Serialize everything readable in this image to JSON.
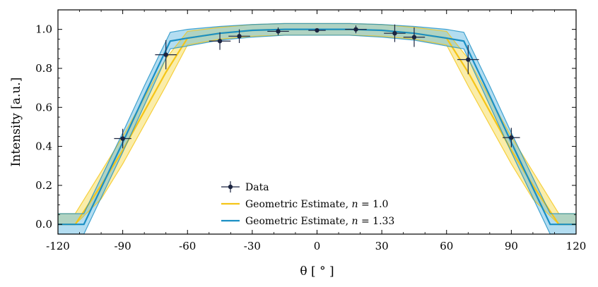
{
  "chart_data": {
    "type": "line",
    "title": "",
    "xlabel": "θ [ ° ]",
    "ylabel": "Intensity [a.u.]",
    "xlim": [
      -120,
      120
    ],
    "ylim": [
      -0.05,
      1.1
    ],
    "grid": false,
    "legend_position": "lower-center",
    "xticks": [
      -120,
      -90,
      -60,
      -30,
      0,
      30,
      60,
      90,
      120
    ],
    "xtick_labels": [
      "-120",
      "-90",
      "-60",
      "-30",
      "0",
      "30",
      "60",
      "90",
      "120"
    ],
    "yticks": [
      0.0,
      0.2,
      0.4,
      0.6,
      0.8,
      1.0
    ],
    "ytick_labels": [
      "0.0",
      "0.2",
      "0.4",
      "0.6",
      "0.8",
      "1.0"
    ],
    "series": [
      {
        "name": "Data",
        "kind": "errorbar",
        "color": "#1b2440",
        "points": [
          {
            "x": -90,
            "y": 0.44,
            "xerr": 4,
            "yerr": 0.05
          },
          {
            "x": -70,
            "y": 0.87,
            "xerr": 5,
            "yerr": 0.075
          },
          {
            "x": -45,
            "y": 0.94,
            "xerr": 5,
            "yerr": 0.045
          },
          {
            "x": -36,
            "y": 0.965,
            "xerr": 5,
            "yerr": 0.035
          },
          {
            "x": -18,
            "y": 0.99,
            "xerr": 5,
            "yerr": 0.02
          },
          {
            "x": 0,
            "y": 0.995,
            "xerr": 4,
            "yerr": 0.01
          },
          {
            "x": 18,
            "y": 1.0,
            "xerr": 5,
            "yerr": 0.02
          },
          {
            "x": 36,
            "y": 0.98,
            "xerr": 5,
            "yerr": 0.045
          },
          {
            "x": 45,
            "y": 0.96,
            "xerr": 5,
            "yerr": 0.05
          },
          {
            "x": 70,
            "y": 0.845,
            "xerr": 5,
            "yerr": 0.075
          },
          {
            "x": 90,
            "y": 0.445,
            "xerr": 4,
            "yerr": 0.05
          }
        ]
      },
      {
        "name": "Geometric Estimate, n = 1.0",
        "kind": "line_band",
        "color": "#f5c518",
        "fill": "#f5d742",
        "x": [
          -120,
          -112,
          -100,
          -90,
          -80,
          -70,
          -60,
          -45,
          -30,
          -15,
          0,
          15,
          30,
          45,
          60,
          70,
          80,
          90,
          100,
          112,
          120
        ],
        "y": [
          0.0,
          0.0,
          0.2,
          0.38,
          0.58,
          0.78,
          0.955,
          0.98,
          0.995,
          1.0,
          1.0,
          1.0,
          0.995,
          0.98,
          0.955,
          0.78,
          0.58,
          0.38,
          0.2,
          0.0,
          0.0
        ],
        "upper": [
          0.055,
          0.055,
          0.27,
          0.45,
          0.65,
          0.85,
          0.99,
          1.01,
          1.025,
          1.03,
          1.03,
          1.03,
          1.025,
          1.01,
          0.99,
          0.85,
          0.65,
          0.45,
          0.27,
          0.055,
          0.055
        ],
        "lower": [
          0.0,
          0.0,
          0.13,
          0.31,
          0.51,
          0.71,
          0.92,
          0.95,
          0.965,
          0.97,
          0.97,
          0.97,
          0.965,
          0.95,
          0.92,
          0.71,
          0.51,
          0.31,
          0.13,
          0.0,
          0.0
        ]
      },
      {
        "name": "Geometric Estimate, n = 1.33",
        "kind": "line_band",
        "color": "#1a8fc4",
        "fill": "#56b4e0",
        "x": [
          -120,
          -108,
          -90,
          -80,
          -68,
          -60,
          -45,
          -30,
          -15,
          0,
          15,
          30,
          45,
          60,
          68,
          80,
          90,
          108,
          120
        ],
        "y": [
          0.0,
          0.0,
          0.42,
          0.66,
          0.94,
          0.955,
          0.98,
          0.995,
          1.0,
          1.0,
          1.0,
          0.995,
          0.98,
          0.955,
          0.94,
          0.66,
          0.42,
          0.0,
          0.0
        ],
        "upper": [
          0.055,
          0.055,
          0.47,
          0.71,
          0.985,
          1.0,
          1.015,
          1.025,
          1.03,
          1.03,
          1.03,
          1.025,
          1.015,
          1.0,
          0.985,
          0.71,
          0.47,
          0.055,
          0.055
        ],
        "lower": [
          -0.05,
          -0.05,
          0.37,
          0.61,
          0.9,
          0.915,
          0.945,
          0.96,
          0.97,
          0.97,
          0.97,
          0.96,
          0.945,
          0.915,
          0.9,
          0.61,
          0.37,
          -0.05,
          -0.05
        ]
      }
    ],
    "legend": [
      {
        "label_main": "Data",
        "label_var": "",
        "label_rest": ""
      },
      {
        "label_main": "Geometric Estimate, ",
        "label_var": "n",
        "label_rest": " = 1.0"
      },
      {
        "label_main": "Geometric Estimate, ",
        "label_var": "n",
        "label_rest": " = 1.33"
      }
    ]
  }
}
